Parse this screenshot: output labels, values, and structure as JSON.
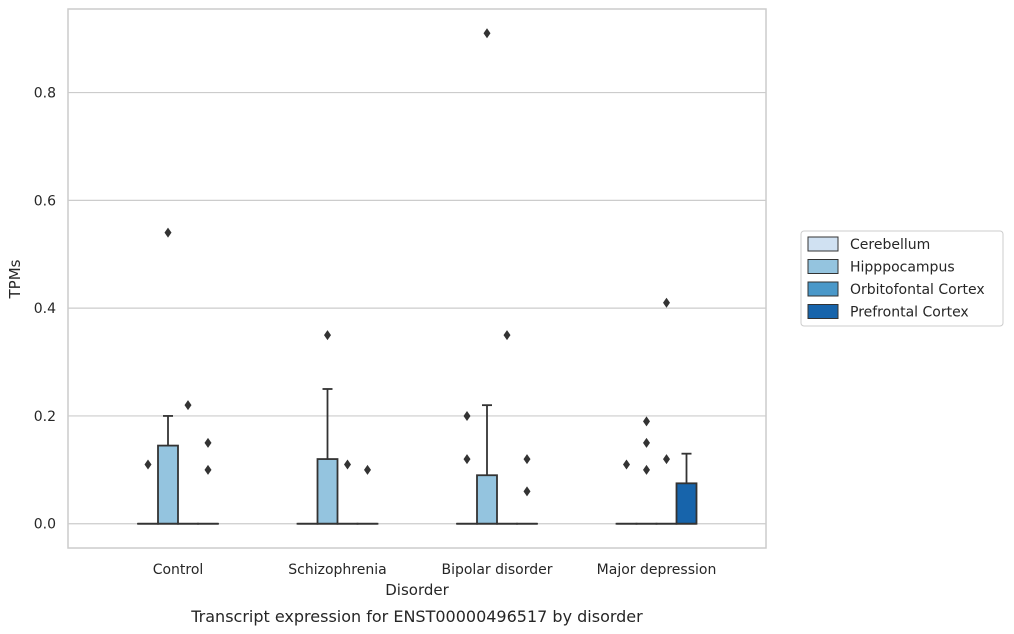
{
  "colors": {
    "Cerebellum": "#d0e1f2",
    "Hipppocampus": "#94c4df",
    "Orbitofontal Cortex": "#4a98c9",
    "Prefrontal Cortex": "#1764ab",
    "grid": "#cccccc",
    "frame": "#cccccc",
    "line": "#333333"
  },
  "chart_data": {
    "type": "box",
    "title": "",
    "caption": "Transcript expression for ENST00000496517 by disorder",
    "xlabel": "Disorder",
    "ylabel": "TPMs",
    "ylim": [
      -0.045,
      0.955
    ],
    "yticks": [
      0.0,
      0.2,
      0.4,
      0.6,
      0.8
    ],
    "ytick_labels": [
      "0.0",
      "0.2",
      "0.4",
      "0.6",
      "0.8"
    ],
    "grid": "horizontal",
    "legend_position": "right",
    "categories": [
      "Control",
      "Schizophrenia",
      "Bipolar disorder",
      "Major depression"
    ],
    "series": [
      {
        "name": "Cerebellum",
        "boxes": [
          {
            "category": "Control",
            "q1": 0,
            "median": 0,
            "q3": 0,
            "whisker_low": 0,
            "whisker_high": 0,
            "outliers": []
          },
          {
            "category": "Schizophrenia",
            "q1": 0,
            "median": 0,
            "q3": 0,
            "whisker_low": 0,
            "whisker_high": 0,
            "outliers": []
          },
          {
            "category": "Bipolar disorder",
            "q1": 0,
            "median": 0,
            "q3": 0,
            "whisker_low": 0,
            "whisker_high": 0,
            "outliers": []
          },
          {
            "category": "Major depression",
            "q1": 0,
            "median": 0,
            "q3": 0,
            "whisker_low": 0,
            "whisker_high": 0,
            "outliers": []
          }
        ]
      },
      {
        "name": "Hipppocampus",
        "boxes": [
          {
            "category": "Control",
            "q1": 0,
            "median": 0,
            "q3": 0.145,
            "whisker_low": 0,
            "whisker_high": 0.2,
            "outliers": [
              0.54
            ]
          },
          {
            "category": "Schizophrenia",
            "q1": 0,
            "median": 0,
            "q3": 0.12,
            "whisker_low": 0,
            "whisker_high": 0.25,
            "outliers": [
              0.35
            ]
          },
          {
            "category": "Bipolar disorder",
            "q1": 0,
            "median": 0,
            "q3": 0.09,
            "whisker_low": 0,
            "whisker_high": 0.22,
            "outliers": [
              0.91
            ]
          },
          {
            "category": "Major depression",
            "q1": 0,
            "median": 0,
            "q3": 0,
            "whisker_low": 0,
            "whisker_high": 0,
            "outliers": [
              0.1,
              0.15,
              0.19
            ]
          }
        ]
      },
      {
        "name": "Orbitofontal Cortex",
        "boxes": [
          {
            "category": "Control",
            "q1": 0,
            "median": 0,
            "q3": 0,
            "whisker_low": 0,
            "whisker_high": 0,
            "outliers": [
              0.22
            ]
          },
          {
            "category": "Schizophrenia",
            "q1": 0,
            "median": 0,
            "q3": 0,
            "whisker_low": 0,
            "whisker_high": 0,
            "outliers": [
              0.11
            ]
          },
          {
            "category": "Bipolar disorder",
            "q1": 0,
            "median": 0,
            "q3": 0,
            "whisker_low": 0,
            "whisker_high": 0,
            "outliers": [
              0.35
            ]
          },
          {
            "category": "Major depression",
            "q1": 0,
            "median": 0,
            "q3": 0,
            "whisker_low": 0,
            "whisker_high": 0,
            "outliers": [
              0.12,
              0.41
            ]
          }
        ]
      },
      {
        "name": "Prefrontal Cortex",
        "boxes": [
          {
            "category": "Control",
            "q1": 0,
            "median": 0,
            "q3": 0,
            "whisker_low": 0,
            "whisker_high": 0,
            "outliers": [
              0.1,
              0.15
            ]
          },
          {
            "category": "Schizophrenia",
            "q1": 0,
            "median": 0,
            "q3": 0,
            "whisker_low": 0,
            "whisker_high": 0,
            "outliers": [
              0.1
            ]
          },
          {
            "category": "Bipolar disorder",
            "q1": 0,
            "median": 0,
            "q3": 0,
            "whisker_low": 0,
            "whisker_high": 0,
            "outliers": [
              0.06,
              0.12
            ]
          },
          {
            "category": "Major depression",
            "q1": 0,
            "median": 0,
            "q3": 0.075,
            "whisker_low": 0,
            "whisker_high": 0.13,
            "outliers": []
          }
        ]
      }
    ],
    "extra_outliers": [
      {
        "category": "Control",
        "position": "left",
        "value": 0.11
      },
      {
        "category": "Bipolar disorder",
        "position": "left",
        "value": 0.12
      },
      {
        "category": "Bipolar disorder",
        "position": "left",
        "value": 0.2
      },
      {
        "category": "Major depression",
        "position": "left",
        "value": 0.11
      }
    ]
  }
}
